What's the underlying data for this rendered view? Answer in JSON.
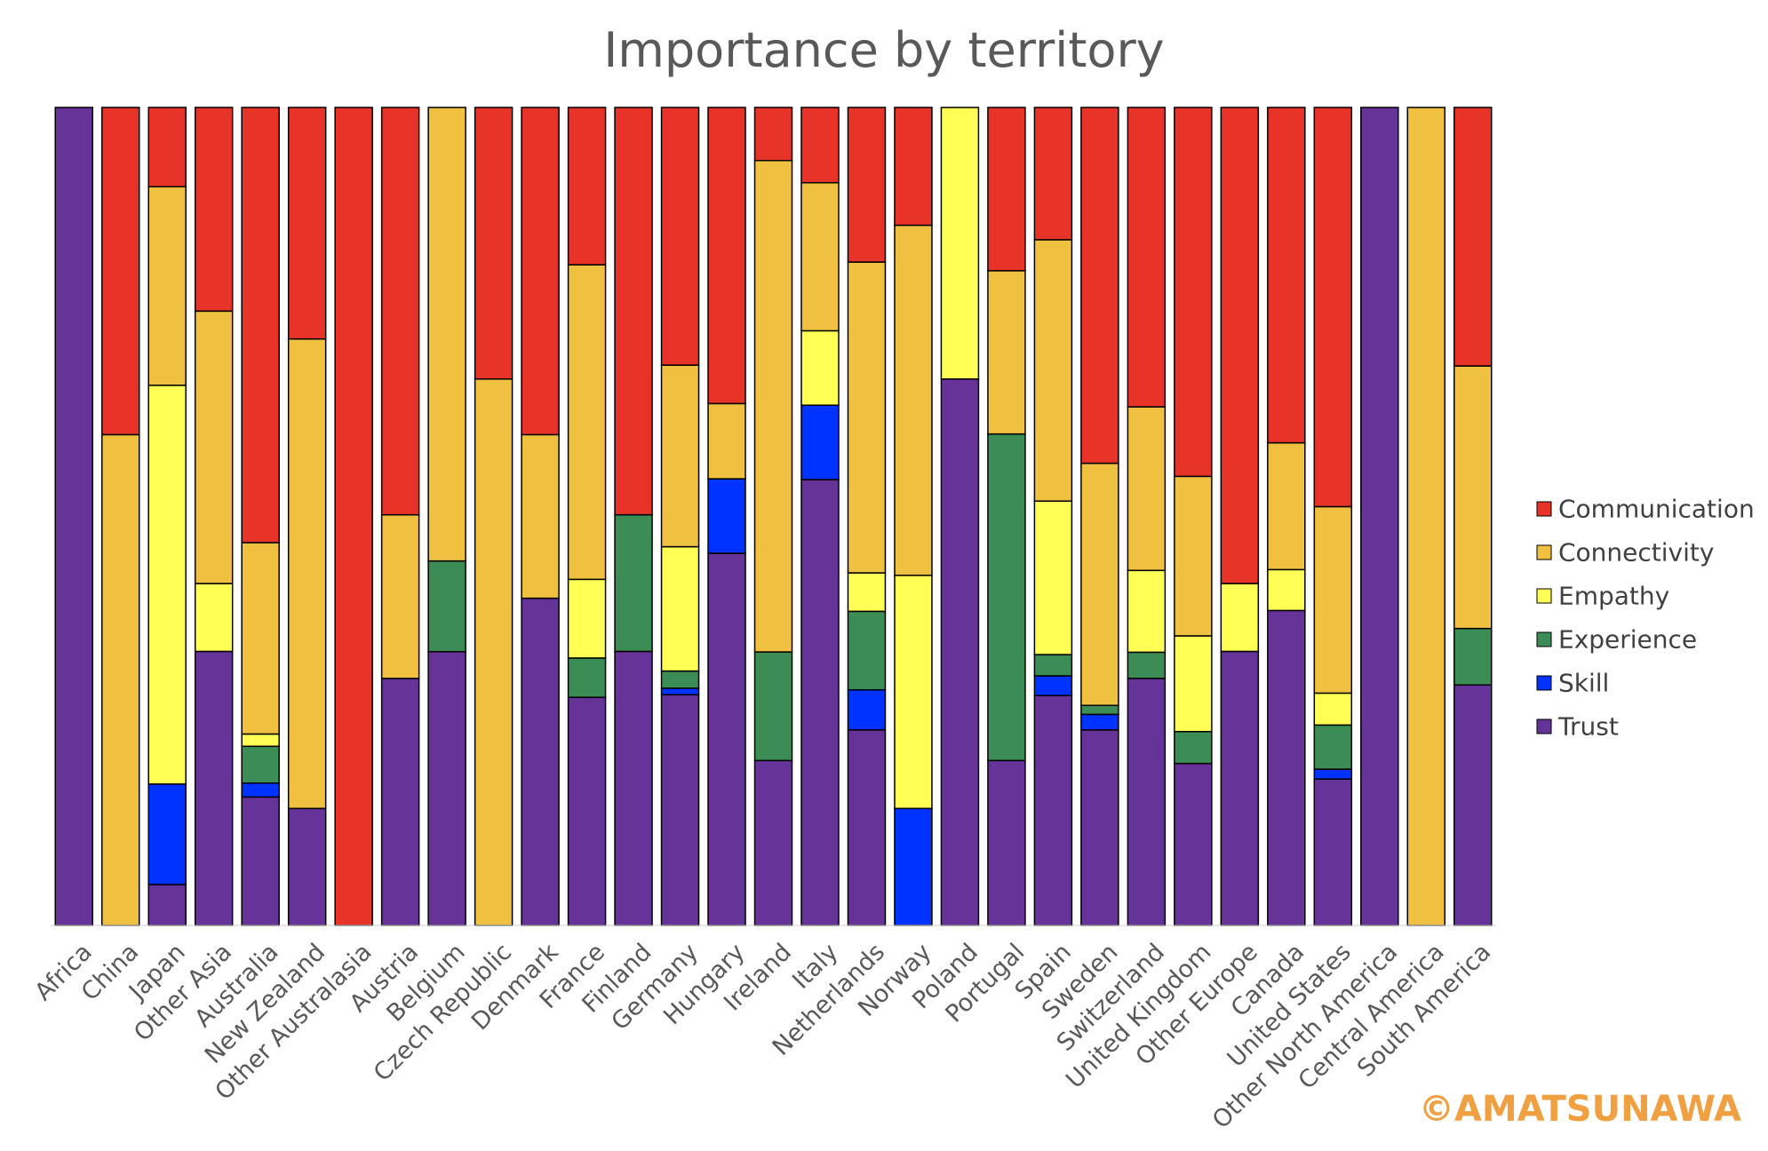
{
  "chart_data": {
    "type": "bar",
    "stacked": true,
    "percent_stacked": true,
    "title": "Importance by territory",
    "xlabel": "",
    "ylabel": "",
    "ylim": [
      0,
      100
    ],
    "grid": false,
    "legend_position": "right",
    "categories": [
      "Africa",
      "China",
      "Japan",
      "Other Asia",
      "Australia",
      "New Zealand",
      "Other Australasia",
      "Austria",
      "Belgium",
      "Czech Republic",
      "Denmark",
      "France",
      "Finland",
      "Germany",
      "Hungary",
      "Ireland",
      "Italy",
      "Netherlands",
      "Norway",
      "Poland",
      "Portugal",
      "Spain",
      "Sweden",
      "Switzerland",
      "United Kingdom",
      "Other Europe",
      "Canada",
      "United States",
      "Other North America",
      "Central America",
      "South America"
    ],
    "series": [
      {
        "name": "Trust",
        "color": "#663399",
        "values": [
          100,
          0,
          5,
          33.5,
          15.7,
          14.3,
          0,
          30.2,
          33.5,
          0,
          40,
          29,
          33.5,
          28.2,
          45.5,
          20.2,
          54.5,
          23.9,
          0,
          66.8,
          20.2,
          29.2,
          23.9,
          30.2,
          19.8,
          33.5,
          38.5,
          17.9,
          66.8,
          0,
          29.4
        ]
      },
      {
        "name": "Skill",
        "color": "#0033FF",
        "values": [
          0,
          0,
          12.3,
          0,
          1.7,
          0,
          0,
          0,
          0,
          0,
          0,
          0,
          0,
          0.8,
          9.1,
          0,
          9.1,
          4.9,
          14.3,
          0,
          0,
          2.5,
          1.9,
          0,
          0,
          0,
          0,
          1.2,
          0,
          0,
          0
        ]
      },
      {
        "name": "Experience",
        "color": "#3C8C55",
        "values": [
          0,
          0,
          0,
          0,
          4.5,
          0,
          0,
          0,
          11.1,
          0,
          0,
          5,
          16.7,
          2.1,
          0,
          13.3,
          0,
          9.6,
          0,
          0,
          40,
          2.7,
          1.1,
          3.2,
          3.9,
          0,
          0,
          5.4,
          0,
          0,
          6.9
        ]
      },
      {
        "name": "Empathy",
        "color": "#FFFF55",
        "values": [
          0,
          0,
          48.8,
          8.3,
          1.5,
          0,
          0,
          0,
          0,
          0,
          0,
          10,
          0,
          15.2,
          0,
          0,
          9.1,
          4.7,
          28.5,
          33.2,
          0,
          19.5,
          0,
          10,
          11.7,
          8.3,
          5,
          3.9,
          0,
          0,
          0
        ]
      },
      {
        "name": "Connectivity",
        "color": "#F0C040",
        "values": [
          0,
          60,
          24.3,
          33.3,
          23.4,
          57.4,
          0,
          20,
          55.5,
          66.8,
          20,
          40,
          0,
          22.2,
          9.2,
          60.2,
          18.1,
          38,
          42.8,
          0,
          20,
          33.2,
          29.6,
          20,
          19.5,
          0,
          15.5,
          22.8,
          0,
          100,
          32.1
        ]
      },
      {
        "name": "Communication",
        "color": "#E83428",
        "values": [
          0,
          40,
          9.7,
          24.9,
          53.2,
          28.3,
          100,
          49.8,
          0,
          33.2,
          40,
          20,
          49.8,
          31.5,
          36.2,
          6.5,
          9.2,
          18.9,
          14.4,
          0,
          20,
          16.8,
          43.5,
          36.6,
          45.1,
          58.2,
          41,
          48.8,
          0,
          0,
          31.6
        ]
      }
    ]
  },
  "watermark": "©AMATSUNAWA"
}
